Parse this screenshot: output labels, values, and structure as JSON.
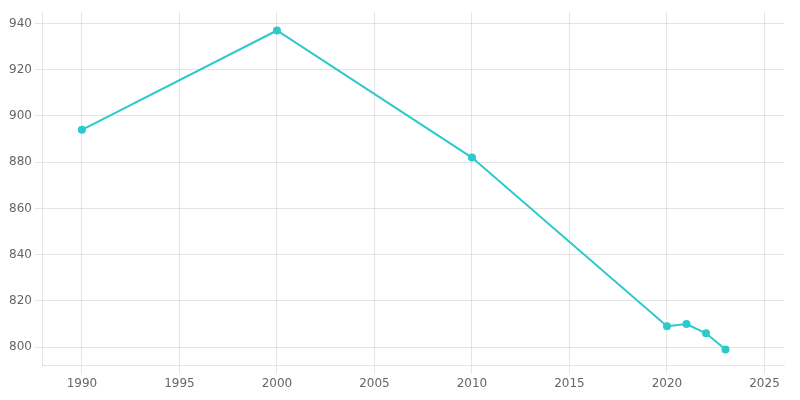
{
  "chart_data": {
    "type": "line",
    "x": [
      1990,
      2000,
      2010,
      2020,
      2021,
      2022,
      2023
    ],
    "values": [
      894,
      937,
      882,
      809,
      810,
      806,
      799
    ],
    "color": "#2dc9cc",
    "marker": "circle",
    "xlim": [
      1988,
      2026
    ],
    "ylim": [
      792,
      945
    ],
    "xticks": [
      1990,
      1995,
      2000,
      2005,
      2010,
      2015,
      2020,
      2025
    ],
    "yticks": [
      800,
      820,
      840,
      860,
      880,
      900,
      920,
      940
    ],
    "grid": true
  }
}
